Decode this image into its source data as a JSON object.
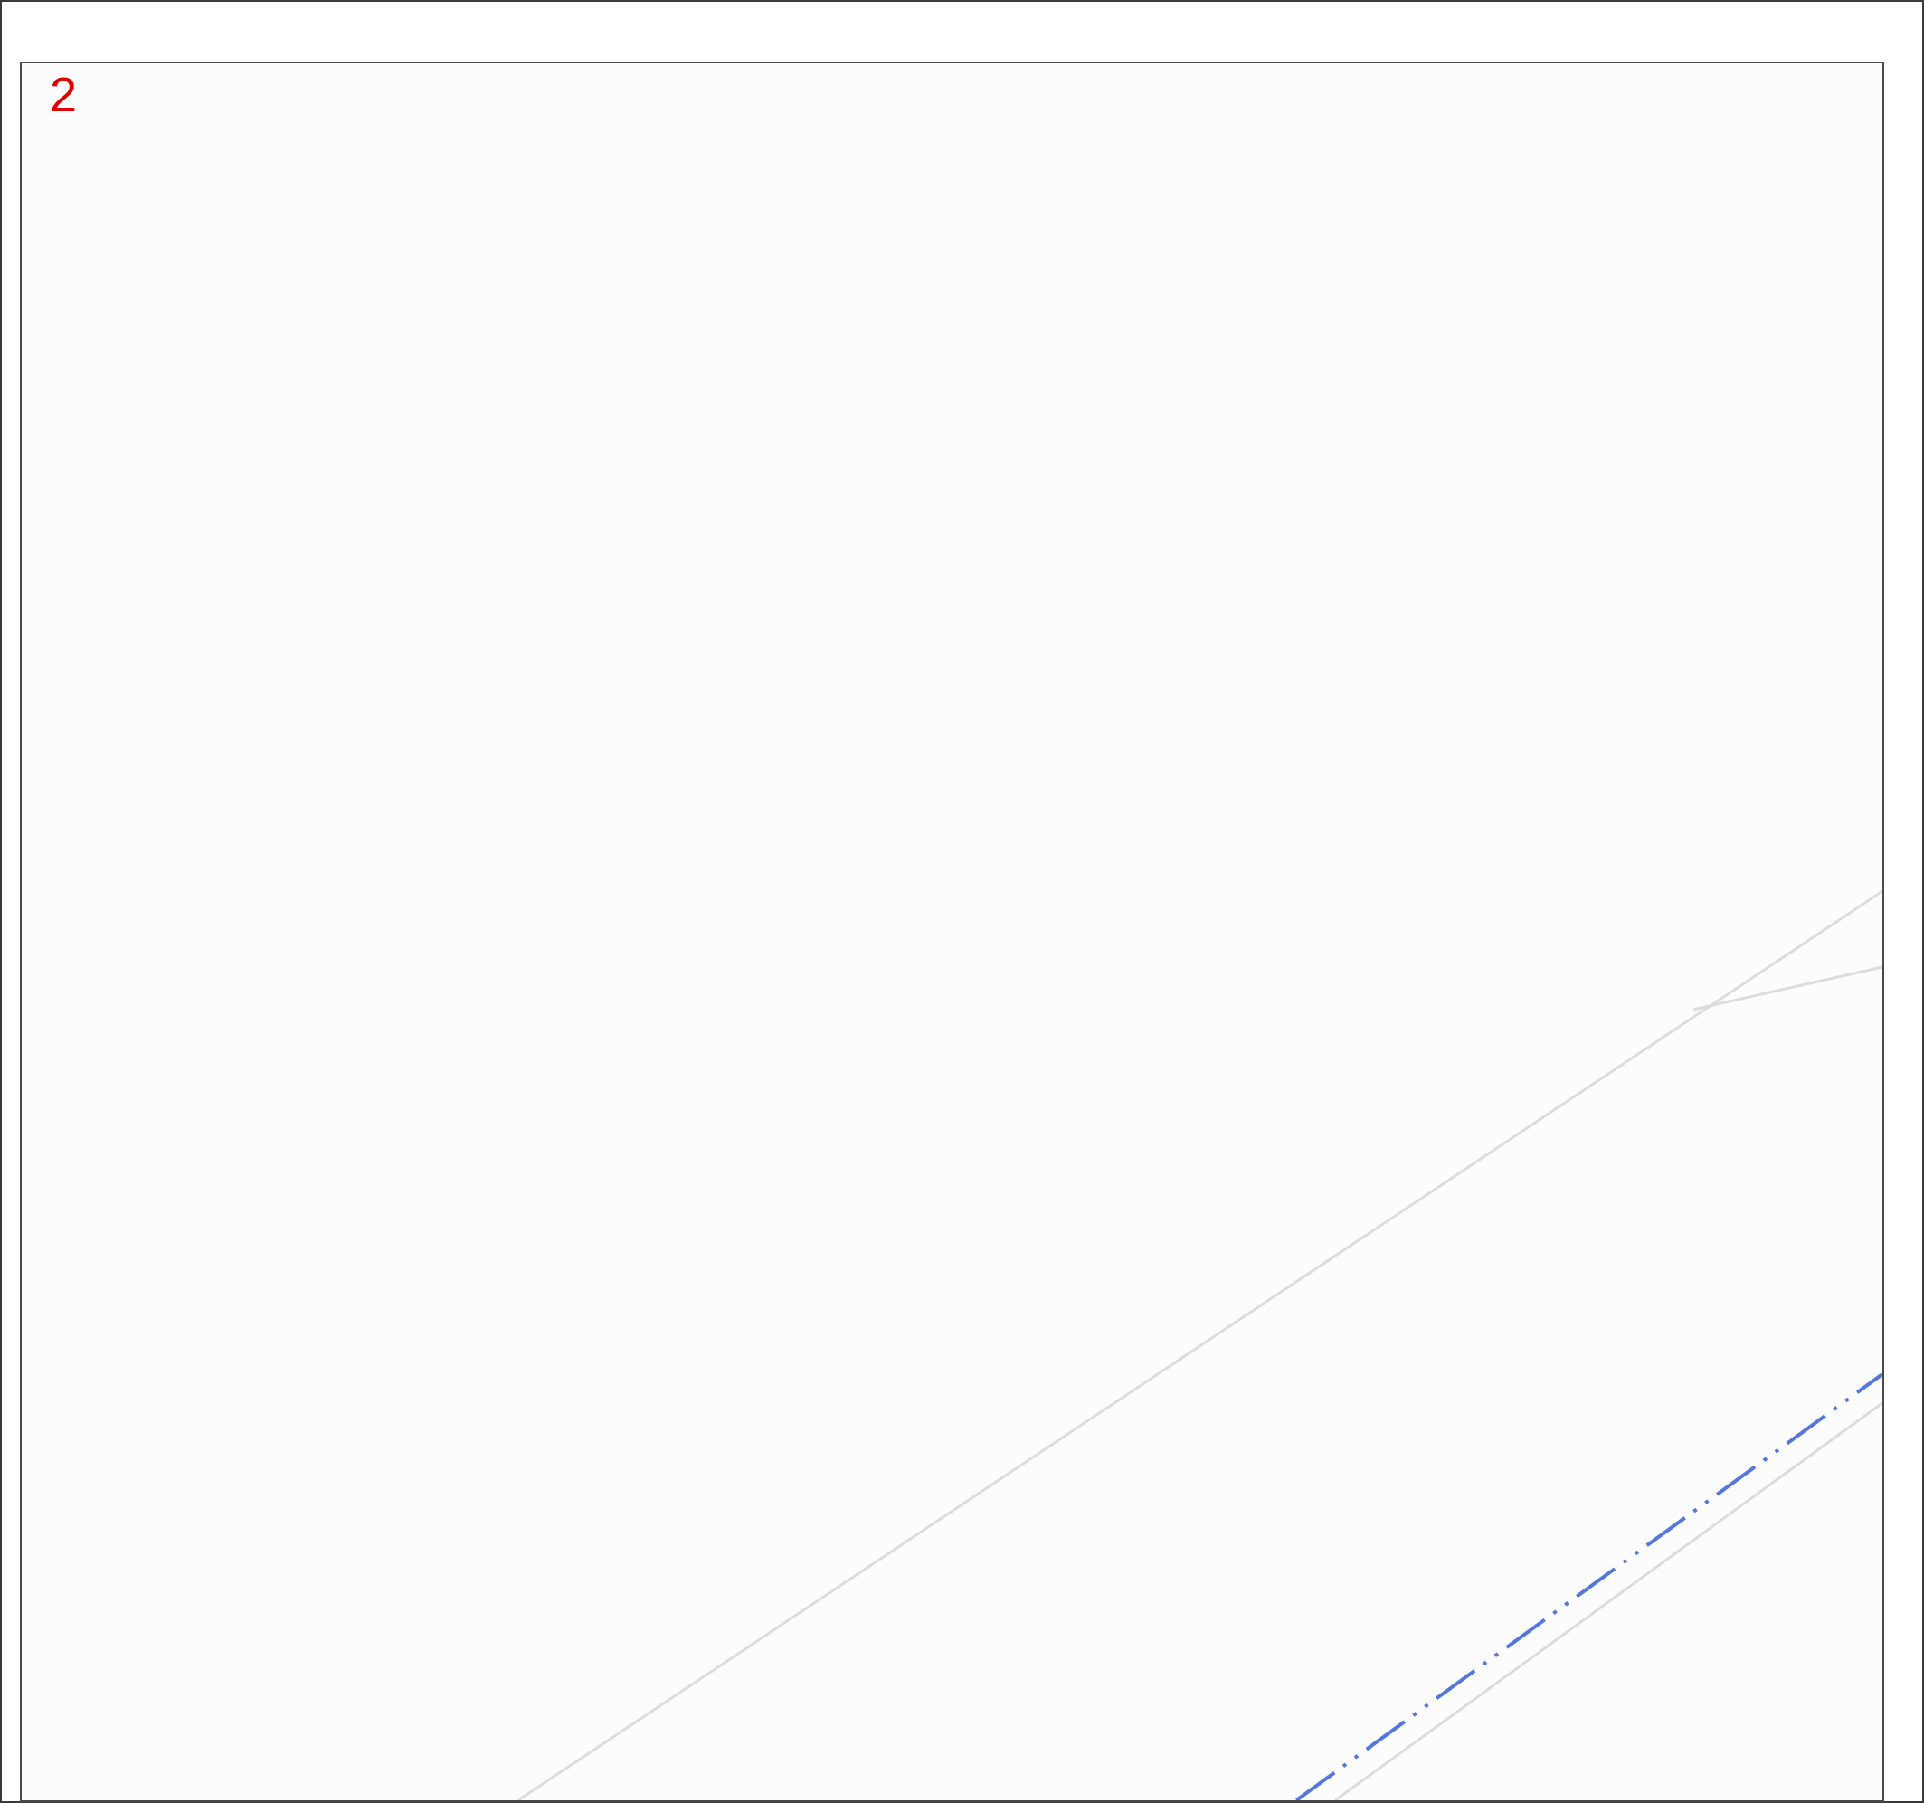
{
  "page": {
    "number": "2"
  },
  "colors": {
    "page_number": "#e00000",
    "frame_border": "#4a4a4a",
    "map_background": "#fcfcfc",
    "road_outline": "#dcdcdc",
    "boundary_line": "#5577dd"
  },
  "map": {
    "features": [
      {
        "name": "road-edge-upper",
        "kind": "road-outline"
      },
      {
        "name": "road-spur",
        "kind": "road-outline"
      },
      {
        "name": "boundary-dash-dot",
        "kind": "dash-dot-dot boundary line"
      },
      {
        "name": "road-edge-lower",
        "kind": "road-outline"
      }
    ]
  }
}
